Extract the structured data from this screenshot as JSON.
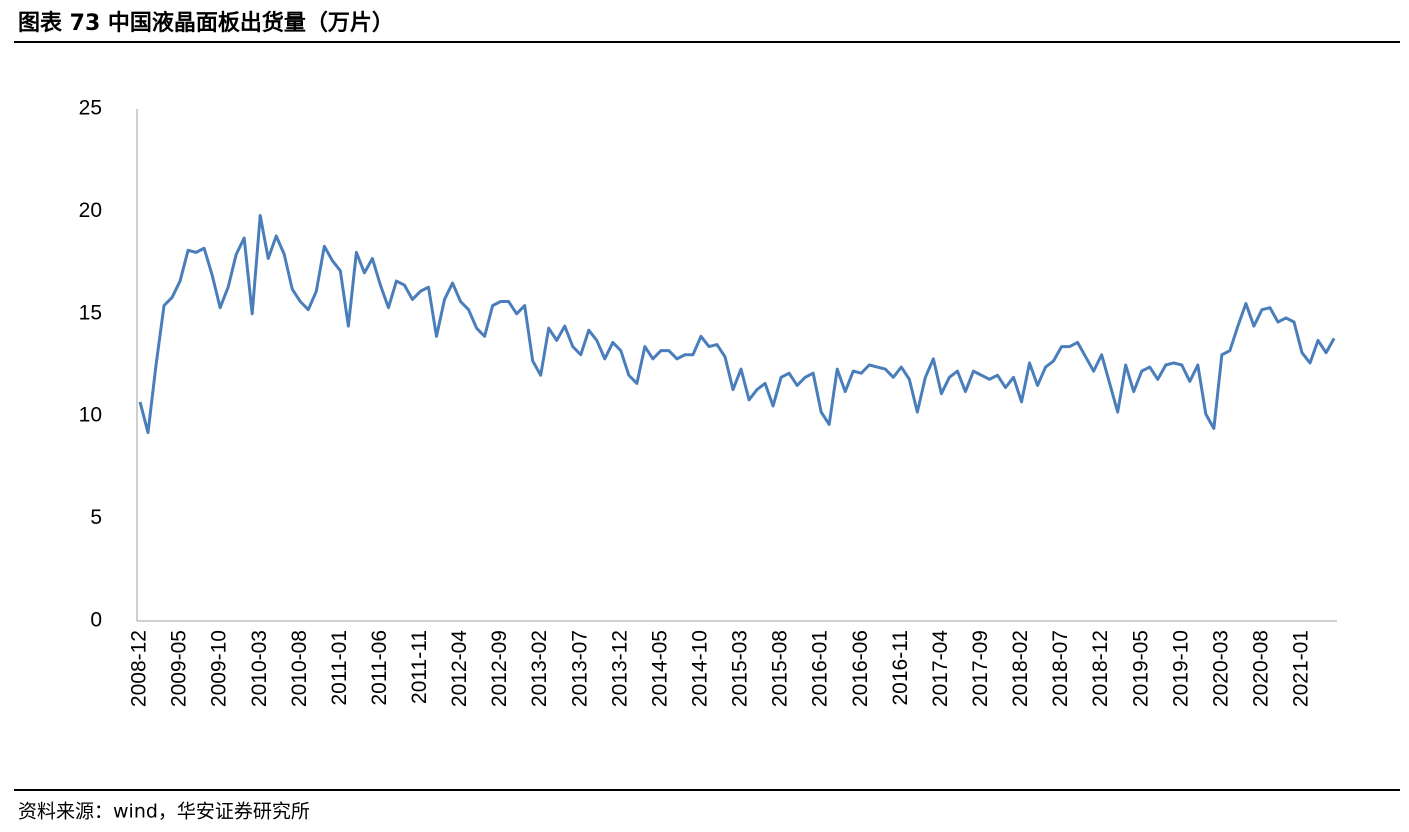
{
  "chart_data": {
    "type": "line",
    "title": "图表 73 中国液晶面板出货量（万片）",
    "source": "资料来源：wind，华安证券研究所",
    "categories": [
      "2008-12",
      null,
      null,
      null,
      null,
      "2009-05",
      null,
      null,
      null,
      null,
      "2009-10",
      null,
      null,
      null,
      null,
      "2010-03",
      null,
      null,
      null,
      null,
      "2010-08",
      null,
      null,
      null,
      null,
      "2011-01",
      null,
      null,
      null,
      null,
      "2011-06",
      null,
      null,
      null,
      null,
      "2011-11",
      null,
      null,
      null,
      null,
      "2012-04",
      null,
      null,
      null,
      null,
      "2012-09",
      null,
      null,
      null,
      null,
      "2013-02",
      null,
      null,
      null,
      null,
      "2013-07",
      null,
      null,
      null,
      null,
      "2013-12",
      null,
      null,
      null,
      null,
      "2014-05",
      null,
      null,
      null,
      null,
      "2014-10",
      null,
      null,
      null,
      null,
      "2015-03",
      null,
      null,
      null,
      null,
      "2015-08",
      null,
      null,
      null,
      null,
      "2016-01",
      null,
      null,
      null,
      null,
      "2016-06",
      null,
      null,
      null,
      null,
      "2016-11",
      null,
      null,
      null,
      null,
      "2017-04",
      null,
      null,
      null,
      null,
      "2017-09",
      null,
      null,
      null,
      null,
      "2018-02",
      null,
      null,
      null,
      null,
      "2018-07",
      null,
      null,
      null,
      null,
      "2018-12",
      null,
      null,
      null,
      null,
      "2019-05",
      null,
      null,
      null,
      null,
      "2019-10",
      null,
      null,
      null,
      null,
      "2020-03",
      null,
      null,
      null,
      null,
      "2020-08",
      null,
      null,
      null,
      null,
      "2021-01",
      null,
      null,
      null,
      null
    ],
    "values": [
      10.7,
      9.2,
      12.5,
      15.4,
      15.8,
      16.6,
      18.1,
      18.0,
      18.2,
      16.9,
      15.3,
      16.3,
      17.9,
      18.7,
      15.0,
      19.8,
      17.7,
      18.8,
      17.9,
      16.2,
      15.6,
      15.2,
      16.1,
      18.3,
      17.6,
      17.1,
      14.4,
      18.0,
      17.0,
      17.7,
      16.4,
      15.3,
      16.6,
      16.4,
      15.7,
      16.1,
      16.3,
      13.9,
      15.7,
      16.5,
      15.6,
      15.2,
      14.3,
      13.9,
      15.4,
      15.6,
      15.6,
      15.0,
      15.4,
      12.7,
      12.0,
      14.3,
      13.7,
      14.4,
      13.4,
      13.0,
      14.2,
      13.7,
      12.8,
      13.6,
      13.2,
      12.0,
      11.6,
      13.4,
      12.8,
      13.2,
      13.2,
      12.8,
      13.0,
      13.0,
      13.9,
      13.4,
      13.5,
      12.9,
      11.3,
      12.3,
      10.8,
      11.3,
      11.6,
      10.5,
      11.9,
      12.1,
      11.5,
      11.9,
      12.1,
      10.2,
      9.6,
      12.3,
      11.2,
      12.2,
      12.1,
      12.5,
      12.4,
      12.3,
      11.9,
      12.4,
      11.8,
      10.2,
      11.9,
      12.8,
      11.1,
      11.9,
      12.2,
      11.2,
      12.2,
      12.0,
      11.8,
      12.0,
      11.4,
      11.9,
      10.7,
      12.6,
      11.5,
      12.4,
      12.7,
      13.4,
      13.4,
      13.6,
      12.9,
      12.2,
      13.0,
      11.6,
      10.2,
      12.5,
      11.2,
      12.2,
      12.4,
      11.8,
      12.5,
      12.6,
      12.5,
      11.7,
      12.5,
      10.1,
      9.4,
      13.0,
      13.2,
      14.4,
      15.5,
      14.4,
      15.2,
      15.3,
      14.6,
      14.8,
      14.6,
      13.1,
      12.6,
      13.7,
      13.1,
      13.8
    ],
    "color": "#4a7ebb",
    "ylim": [
      0,
      25
    ],
    "yticks": [
      0,
      5,
      10,
      15,
      20,
      25
    ],
    "grid": false
  }
}
